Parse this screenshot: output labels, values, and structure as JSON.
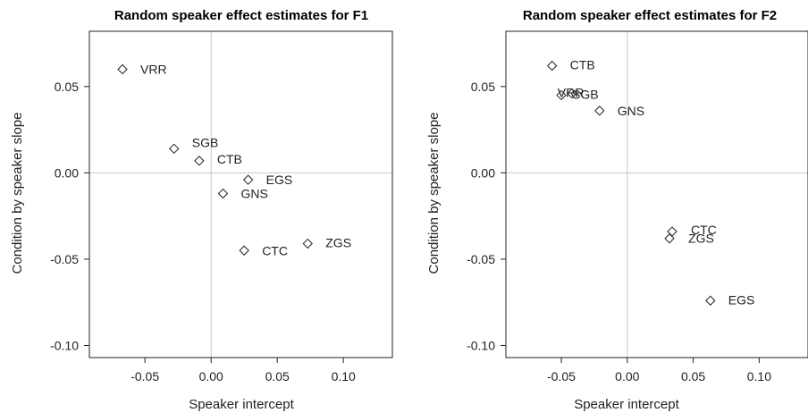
{
  "chart_data": [
    {
      "type": "scatter",
      "title": "Random speaker effect estimates for F1",
      "xlabel": "Speaker intercept",
      "ylabel": "Condition by speaker slope",
      "xlim": [
        -0.092,
        0.137
      ],
      "ylim": [
        -0.107,
        0.082
      ],
      "xticks": [
        -0.05,
        0.0,
        0.05,
        0.1
      ],
      "xtick_labels": [
        "-0.05",
        "0.00",
        "0.05",
        "0.10"
      ],
      "yticks": [
        -0.1,
        -0.05,
        0.0,
        0.05
      ],
      "ytick_labels": [
        "-0.10",
        "-0.05",
        "0.00",
        "0.05"
      ],
      "reference_lines": {
        "x": 0,
        "y": 0
      },
      "points": [
        {
          "label": "VRR",
          "x": -0.067,
          "y": 0.06
        },
        {
          "label": "SGB",
          "x": -0.028,
          "y": 0.014
        },
        {
          "label": "CTB",
          "x": -0.009,
          "y": 0.007
        },
        {
          "label": "EGS",
          "x": 0.028,
          "y": -0.004
        },
        {
          "label": "GNS",
          "x": 0.009,
          "y": -0.012
        },
        {
          "label": "ZGS",
          "x": 0.073,
          "y": -0.041
        },
        {
          "label": "CTC",
          "x": 0.025,
          "y": -0.045
        }
      ]
    },
    {
      "type": "scatter",
      "title": "Random speaker effect estimates for F2",
      "xlabel": "Speaker intercept",
      "ylabel": "Condition by speaker slope",
      "xlim": [
        -0.092,
        0.137
      ],
      "ylim": [
        -0.107,
        0.082
      ],
      "xticks": [
        -0.05,
        0.0,
        0.05,
        0.1
      ],
      "xtick_labels": [
        "-0.05",
        "0.00",
        "0.05",
        "0.10"
      ],
      "yticks": [
        -0.1,
        -0.05,
        0.0,
        0.05
      ],
      "ytick_labels": [
        "-0.10",
        "-0.05",
        "0.00",
        "0.05"
      ],
      "reference_lines": {
        "x": 0,
        "y": 0
      },
      "points": [
        {
          "label": "CTB",
          "x": -0.057,
          "y": 0.062
        },
        {
          "label": "VRR",
          "x": -0.042,
          "y": 0.046
        },
        {
          "label": "SGB",
          "x": -0.05,
          "y": 0.045
        },
        {
          "label": "GNS",
          "x": -0.021,
          "y": 0.036
        },
        {
          "label": "CTC",
          "x": 0.034,
          "y": -0.034
        },
        {
          "label": "ZGS",
          "x": 0.032,
          "y": -0.038
        },
        {
          "label": "EGS",
          "x": 0.063,
          "y": -0.074
        }
      ]
    }
  ]
}
